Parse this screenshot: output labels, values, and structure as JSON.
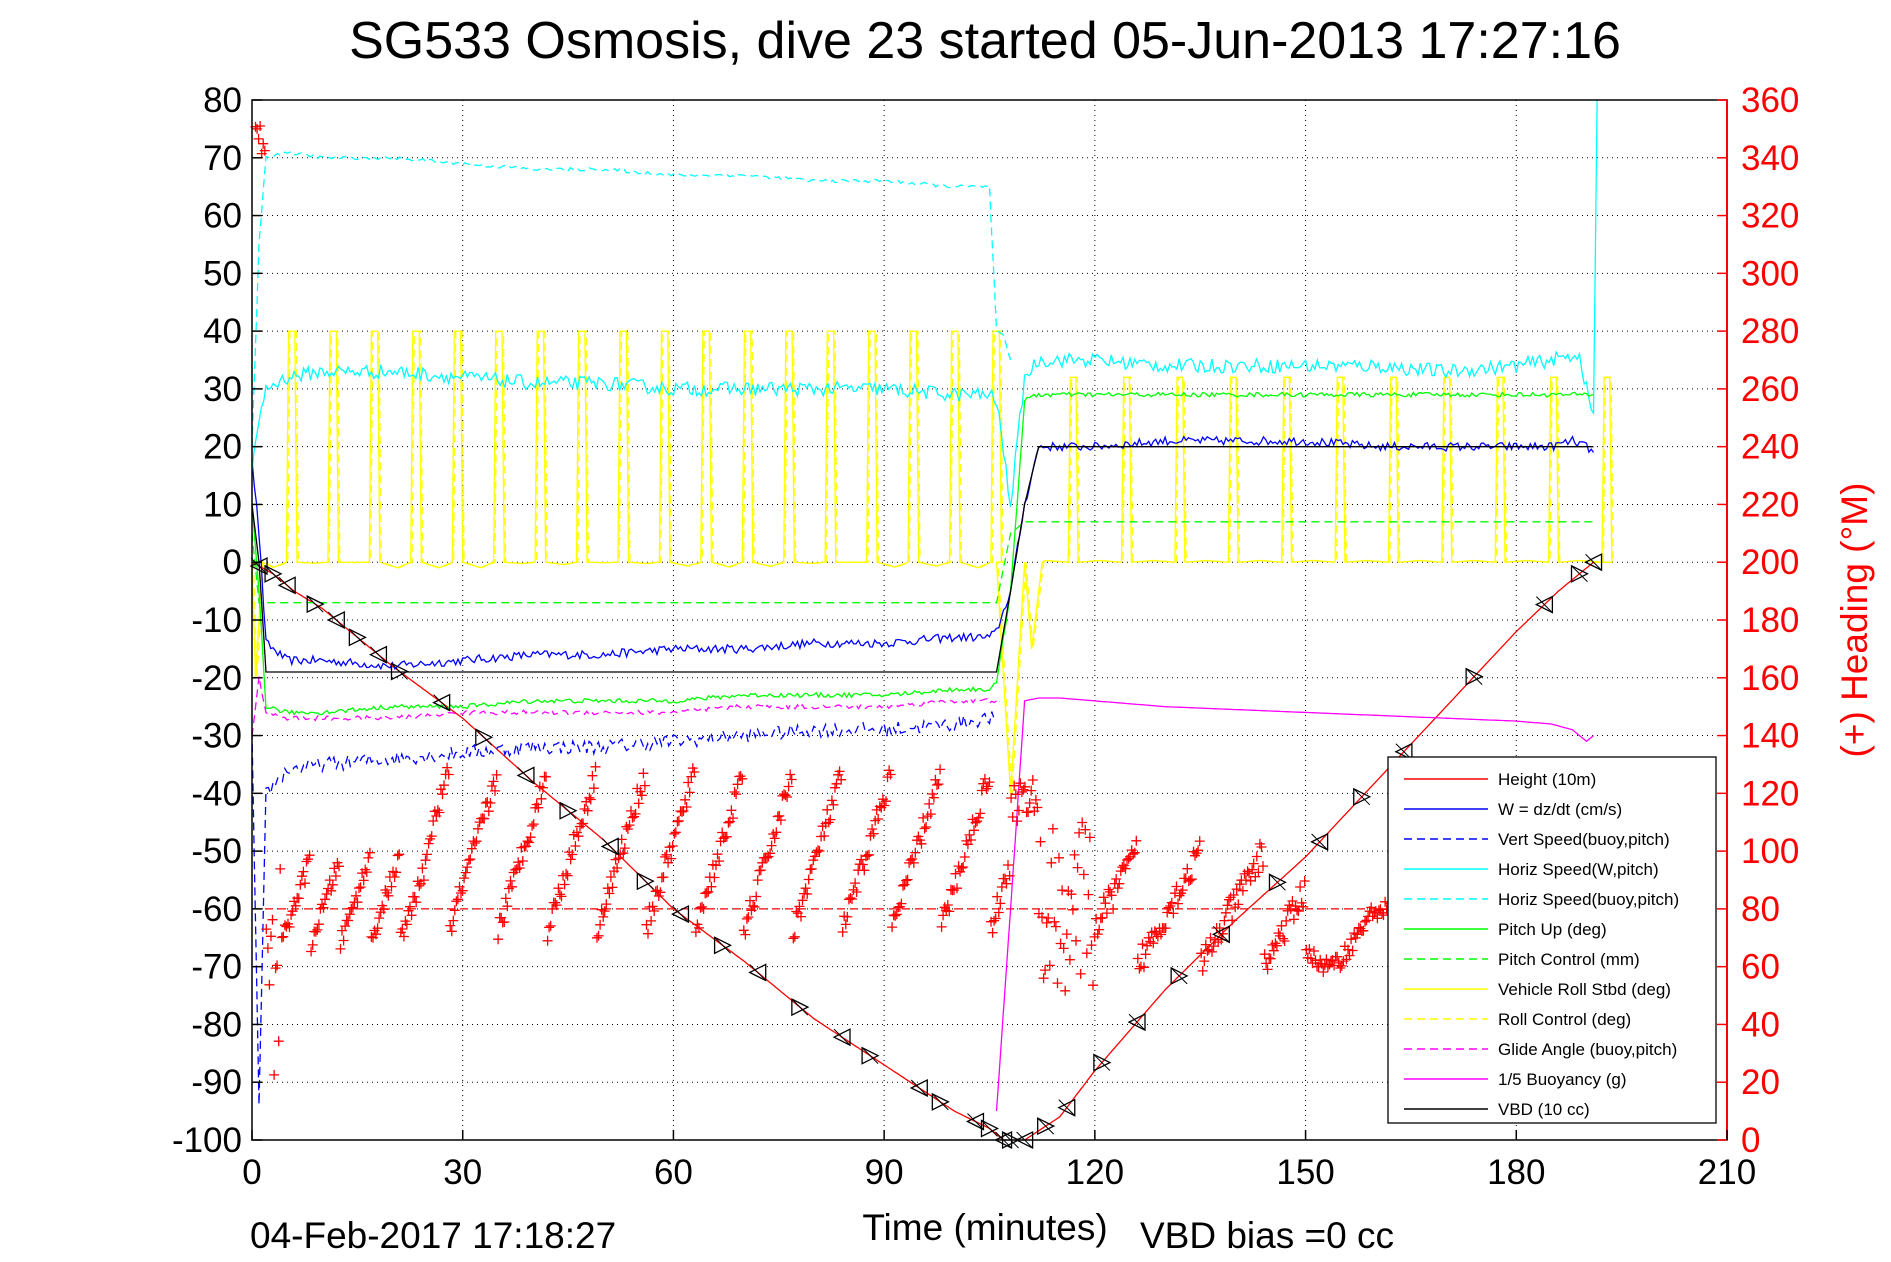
{
  "chart_data": {
    "type": "line",
    "title": "SG533 Osmosis, dive 23 started 05-Jun-2013 17:27:16",
    "xlabel": "Time (minutes)",
    "ylabel": "",
    "y2label": "(+) Heading (°M)",
    "xlim": [
      0,
      210
    ],
    "ylim": [
      -100,
      80
    ],
    "y2lim": [
      0,
      360
    ],
    "x_ticks": [
      "0",
      "30",
      "60",
      "90",
      "120",
      "150",
      "180",
      "210"
    ],
    "y_ticks": [
      "80",
      "70",
      "60",
      "50",
      "40",
      "30",
      "20",
      "10",
      "0",
      "-10",
      "-20",
      "-30",
      "-40",
      "-50",
      "-60",
      "-70",
      "-80",
      "-90",
      "-100"
    ],
    "y2_ticks": [
      "360",
      "340",
      "320",
      "300",
      "280",
      "260",
      "240",
      "220",
      "200",
      "180",
      "160",
      "140",
      "120",
      "100",
      "80",
      "60",
      "40",
      "20",
      "0"
    ],
    "grid": true,
    "legend_position": "bottom-right",
    "footer_left": "04-Feb-2017 17:18:27",
    "footer_right": "VBD bias =0 cc",
    "colors": {
      "red": "#ff0000",
      "blue": "#0000ff",
      "cyan": "#00ffff",
      "green": "#00ff00",
      "yellow": "#ffff00",
      "magenta": "#ff00ff",
      "black": "#000000"
    },
    "series": [
      {
        "name": "Height (10m)",
        "color": "#ff0000",
        "dash": false,
        "x": [
          0,
          3,
          6,
          10,
          15,
          20,
          30,
          40,
          50,
          60,
          70,
          80,
          90,
          100,
          105,
          107,
          110,
          115,
          120,
          130,
          140,
          150,
          160,
          170,
          180,
          186,
          191
        ],
        "y": [
          0,
          -2,
          -5,
          -8,
          -13,
          -18,
          -27,
          -38,
          -48,
          -60,
          -69,
          -79,
          -87,
          -95,
          -98,
          -100,
          -100,
          -96,
          -88,
          -74,
          -62,
          -51,
          -38,
          -25,
          -12,
          -5,
          0
        ]
      },
      {
        "name": "W = dz/dt (cm/s)",
        "color": "#0000ff",
        "dash": false,
        "x": [
          0,
          1,
          2,
          5,
          10,
          20,
          30,
          40,
          50,
          60,
          70,
          80,
          90,
          100,
          105,
          106,
          108,
          110,
          112,
          120,
          130,
          140,
          150,
          160,
          170,
          180,
          185,
          188,
          190,
          191
        ],
        "y": [
          18,
          5,
          -14,
          -17,
          -17,
          -18,
          -17,
          -16,
          -16,
          -15,
          -15,
          -14,
          -14,
          -13,
          -13,
          -12,
          -5,
          10,
          20,
          20,
          21,
          21,
          21,
          20,
          20,
          20,
          20,
          21,
          20,
          19
        ]
      },
      {
        "name": "Vert Speed(buoy,pitch)",
        "color": "#0000ff",
        "dash": true,
        "x": [
          0,
          1,
          2,
          5,
          10,
          20,
          30,
          40,
          50,
          60,
          70,
          80,
          90,
          100,
          105,
          106
        ],
        "y": [
          -30,
          -95,
          -40,
          -36,
          -35,
          -34,
          -33,
          -32,
          -32,
          -31,
          -30,
          -29,
          -29,
          -28,
          -27,
          -27
        ]
      },
      {
        "name": "Horiz Speed(W,pitch)",
        "color": "#00ffff",
        "dash": false,
        "x": [
          0,
          1,
          2,
          5,
          10,
          20,
          30,
          40,
          50,
          60,
          70,
          80,
          90,
          100,
          105,
          106,
          108,
          110,
          112,
          120,
          130,
          140,
          150,
          160,
          170,
          180,
          185,
          189,
          190,
          191,
          191.5
        ],
        "y": [
          15,
          25,
          30,
          32,
          33,
          33,
          32,
          31,
          31,
          30,
          30,
          30,
          30,
          29,
          29,
          28,
          10,
          32,
          35,
          35,
          34,
          34,
          34,
          34,
          33,
          34,
          35,
          36,
          30,
          25,
          80
        ]
      },
      {
        "name": "Horiz Speed(buoy,pitch)",
        "color": "#00ffff",
        "dash": true,
        "x": [
          0,
          1,
          2,
          5,
          10,
          20,
          30,
          40,
          50,
          60,
          70,
          80,
          90,
          100,
          105,
          106,
          107,
          108
        ],
        "y": [
          20,
          55,
          70,
          71,
          70,
          70,
          69,
          68,
          68,
          67,
          67,
          66,
          66,
          65,
          65,
          40,
          39,
          35
        ]
      },
      {
        "name": "Pitch Up (deg)",
        "color": "#00ff00",
        "dash": false,
        "x": [
          0,
          1,
          2,
          5,
          10,
          20,
          30,
          40,
          50,
          60,
          70,
          80,
          90,
          100,
          105,
          106,
          108,
          110,
          112,
          120,
          130,
          140,
          150,
          160,
          170,
          180,
          185,
          190,
          191
        ],
        "y": [
          10,
          -5,
          -25,
          -26,
          -26,
          -25,
          -25,
          -24,
          -24,
          -24,
          -23,
          -23,
          -23,
          -22,
          -22,
          -21,
          -5,
          28,
          29,
          29,
          29,
          29,
          29,
          29,
          29,
          29,
          29,
          29,
          29
        ]
      },
      {
        "name": "Pitch Control (mm)",
        "color": "#00ff00",
        "dash": true,
        "x": [
          0,
          1,
          2,
          20,
          40,
          60,
          80,
          105,
          106,
          108,
          110,
          120,
          150,
          191
        ],
        "y": [
          5,
          -7,
          -7,
          -7,
          -7,
          -7,
          -7,
          -7,
          -7,
          5,
          7,
          7,
          7,
          7
        ]
      },
      {
        "name": "Vehicle Roll Stbd (deg)",
        "color": "#ffff00",
        "dash": false,
        "x": [],
        "y": []
      },
      {
        "name": "Roll Control (deg)",
        "color": "#ffff00",
        "dash": true,
        "x": [],
        "y": []
      },
      {
        "name": "Glide Angle (buoy,pitch)",
        "color": "#ff00ff",
        "dash": true,
        "x": [
          0,
          1,
          2,
          5,
          10,
          20,
          30,
          40,
          50,
          60,
          70,
          80,
          90,
          100,
          105,
          106
        ],
        "y": [
          -30,
          -20,
          -26,
          -27,
          -27,
          -27,
          -26,
          -26,
          -26,
          -26,
          -25,
          -25,
          -25,
          -24,
          -24,
          -24
        ]
      },
      {
        "name": "1/5 Buoyancy (g)",
        "color": "#ff00ff",
        "dash": false,
        "x": [
          106,
          108,
          110,
          112,
          115,
          120,
          130,
          140,
          150,
          160,
          170,
          180,
          185,
          188,
          190,
          191
        ],
        "y": [
          -95,
          -60,
          -24,
          -23.5,
          -23.5,
          -24,
          -25,
          -25.5,
          -26,
          -26.5,
          -27,
          -27.5,
          -28,
          -29,
          -31,
          -30
        ]
      },
      {
        "name": "VBD (10 cc)",
        "color": "#000000",
        "dash": false,
        "x": [
          0,
          1,
          2,
          20,
          60,
          105,
          106,
          108,
          110,
          112,
          120,
          150,
          190,
          191
        ],
        "y": [
          10,
          0,
          -19,
          -19,
          -19,
          -19,
          -19,
          -5,
          10,
          20,
          20,
          20,
          20,
          20
        ]
      }
    ]
  }
}
